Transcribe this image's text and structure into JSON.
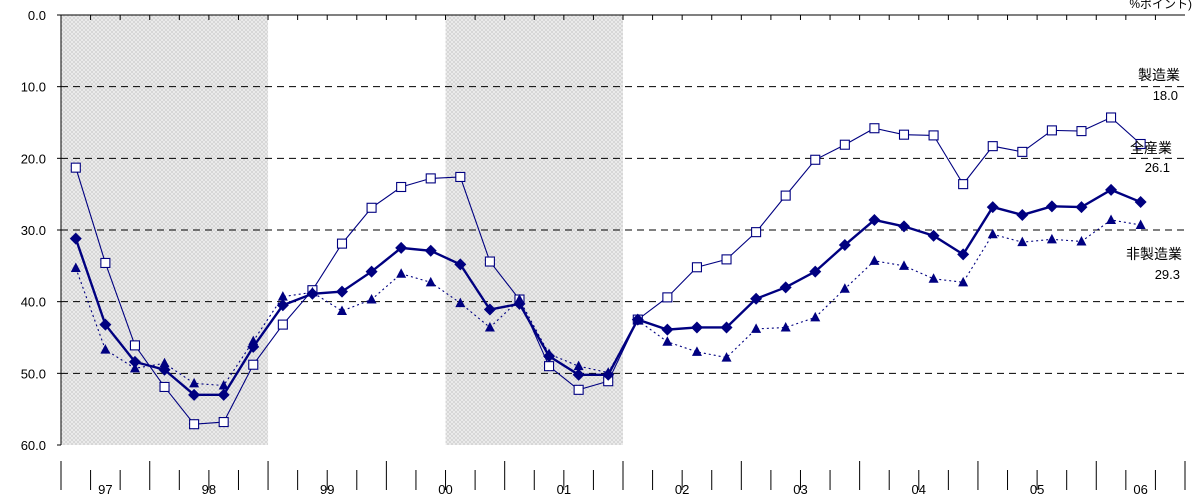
{
  "chart_data": {
    "type": "line",
    "unit_text": "%ポイント)",
    "y_axis": {
      "min": 0,
      "max": 60,
      "reversed": true,
      "ticks": [
        "0.0",
        "10.0",
        "20.0",
        "30.0",
        "40.0",
        "50.0",
        "60.0"
      ]
    },
    "x_axis": {
      "year_labels": [
        "97",
        "98",
        "99",
        "00",
        "01",
        "02",
        "03",
        "04",
        "05",
        "06"
      ],
      "periods": 38
    },
    "shaded_periods": [
      [
        0,
        7
      ],
      [
        13,
        19
      ]
    ],
    "grid": "dashed horizontal",
    "series": [
      {
        "name": "製造業",
        "end_value": "18.0",
        "marker": "open-square",
        "line": "thin-solid",
        "color": "#000080",
        "values": [
          21.3,
          34.6,
          46.1,
          51.9,
          57.1,
          56.8,
          48.8,
          43.2,
          38.4,
          31.9,
          26.9,
          24.0,
          22.8,
          22.6,
          34.4,
          39.7,
          49.0,
          52.3,
          51.1,
          42.5,
          39.4,
          35.2,
          34.1,
          30.3,
          25.2,
          20.2,
          18.1,
          15.8,
          16.7,
          16.8,
          23.6,
          18.3,
          19.1,
          16.1,
          16.2,
          14.3,
          18.0
        ]
      },
      {
        "name": "全産業",
        "end_value": "26.1",
        "marker": "filled-diamond",
        "line": "thick-solid",
        "color": "#000080",
        "values": [
          31.2,
          43.2,
          48.4,
          49.5,
          53.0,
          53.0,
          46.3,
          40.5,
          38.9,
          38.6,
          35.8,
          32.5,
          32.9,
          34.8,
          41.1,
          40.3,
          47.6,
          50.2,
          50.2,
          42.5,
          43.9,
          43.6,
          43.6,
          39.6,
          38.0,
          35.8,
          32.1,
          28.6,
          29.5,
          30.8,
          33.4,
          26.8,
          27.9,
          26.7,
          26.8,
          24.4,
          26.1
        ]
      },
      {
        "name": "非製造業",
        "end_value": "29.3",
        "marker": "filled-triangle",
        "line": "dotted",
        "color": "#000080",
        "values": [
          35.3,
          46.7,
          49.3,
          48.6,
          51.4,
          51.7,
          45.5,
          39.3,
          38.7,
          41.3,
          39.7,
          36.1,
          37.3,
          40.2,
          43.6,
          39.7,
          47.3,
          49.0,
          49.9,
          42.6,
          45.6,
          47.0,
          47.8,
          43.8,
          43.6,
          42.2,
          38.2,
          34.3,
          35.0,
          36.8,
          37.3,
          30.6,
          31.7,
          31.3,
          31.6,
          28.6,
          29.3
        ]
      }
    ]
  }
}
